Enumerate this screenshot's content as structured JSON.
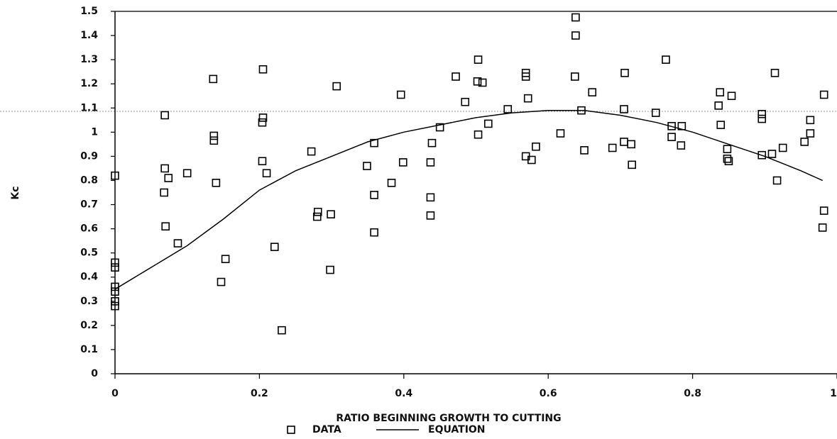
{
  "chart_data": {
    "type": "scatter",
    "xlabel": "RATIO BEGINNING GROWTH TO CUTTING",
    "ylabel": "Kc",
    "xlim": [
      0,
      1
    ],
    "ylim": [
      0,
      1.5
    ],
    "xticks": [
      0,
      0.2,
      0.4,
      0.6,
      0.8,
      1
    ],
    "yticks": [
      0,
      0.1,
      0.2,
      0.3,
      0.4,
      0.5,
      0.6,
      0.7,
      0.8,
      0.9,
      1,
      1.1,
      1.2,
      1.3,
      1.4,
      1.5
    ],
    "legend": "bottom",
    "series": [
      {
        "name": "DATA",
        "color": "#000000",
        "marker": "square",
        "x": [
          0,
          0,
          0,
          0,
          0,
          0,
          0,
          0.069,
          0.069,
          0.074,
          0.068,
          0.07,
          0.1,
          0.087,
          0.136,
          0.137,
          0.137,
          0.14,
          0.153,
          0.147,
          0.205,
          0.205,
          0.204,
          0.204,
          0.21,
          0.221,
          0.231,
          0.272,
          0.281,
          0.28,
          0.299,
          0.307,
          0.298,
          0.349,
          0.359,
          0.359,
          0.359,
          0.383,
          0.396,
          0.399,
          0.439,
          0.437,
          0.437,
          0.437,
          0.45,
          0.472,
          0.485,
          0.503,
          0.502,
          0.509,
          0.503,
          0.517,
          0.544,
          0.569,
          0.569,
          0.572,
          0.569,
          0.577,
          0.583,
          0.617,
          0.638,
          0.638,
          0.637,
          0.646,
          0.661,
          0.65,
          0.689,
          0.706,
          0.705,
          0.705,
          0.715,
          0.716,
          0.749,
          0.763,
          0.771,
          0.771,
          0.785,
          0.784,
          0.838,
          0.836,
          0.839,
          0.854,
          0.848,
          0.848,
          0.85,
          0.896,
          0.896,
          0.896,
          0.91,
          0.914,
          0.917,
          0.925,
          0.955,
          0.963,
          0.963,
          0.982,
          0.982,
          0.98
        ],
        "values": [
          0.82,
          0.46,
          0.44,
          0.36,
          0.34,
          0.3,
          0.28,
          1.07,
          0.85,
          0.81,
          0.75,
          0.61,
          0.83,
          0.54,
          1.22,
          0.985,
          0.965,
          0.79,
          0.475,
          0.38,
          1.26,
          1.06,
          1.04,
          0.88,
          0.83,
          0.525,
          0.18,
          0.92,
          0.67,
          0.65,
          0.66,
          1.19,
          0.43,
          0.86,
          0.955,
          0.74,
          0.585,
          0.79,
          1.155,
          0.875,
          0.955,
          0.875,
          0.73,
          0.655,
          1.02,
          1.23,
          1.125,
          1.3,
          1.21,
          1.205,
          0.99,
          1.035,
          1.095,
          1.245,
          1.23,
          1.14,
          0.9,
          0.885,
          0.94,
          0.995,
          1.475,
          1.4,
          1.23,
          1.09,
          1.165,
          0.925,
          0.935,
          1.245,
          1.095,
          0.96,
          0.95,
          0.865,
          1.08,
          1.3,
          1.025,
          0.98,
          1.025,
          0.945,
          1.165,
          1.11,
          1.03,
          1.15,
          0.93,
          0.89,
          0.88,
          1.075,
          1.055,
          0.905,
          0.91,
          1.245,
          0.8,
          0.935,
          0.96,
          1.05,
          0.995,
          1.155,
          0.675,
          0.605
        ]
      },
      {
        "name": "EQUATION",
        "color": "#000000",
        "marker": "line",
        "x": [
          0,
          0.05,
          0.1,
          0.15,
          0.2,
          0.25,
          0.3,
          0.35,
          0.4,
          0.45,
          0.5,
          0.55,
          0.6,
          0.65,
          0.7,
          0.75,
          0.8,
          0.85,
          0.9,
          0.95,
          0.98
        ],
        "values": [
          0.35,
          0.44,
          0.53,
          0.64,
          0.76,
          0.84,
          0.9,
          0.96,
          1.0,
          1.03,
          1.06,
          1.08,
          1.09,
          1.09,
          1.07,
          1.04,
          1.0,
          0.95,
          0.9,
          0.84,
          0.8
        ]
      }
    ]
  }
}
